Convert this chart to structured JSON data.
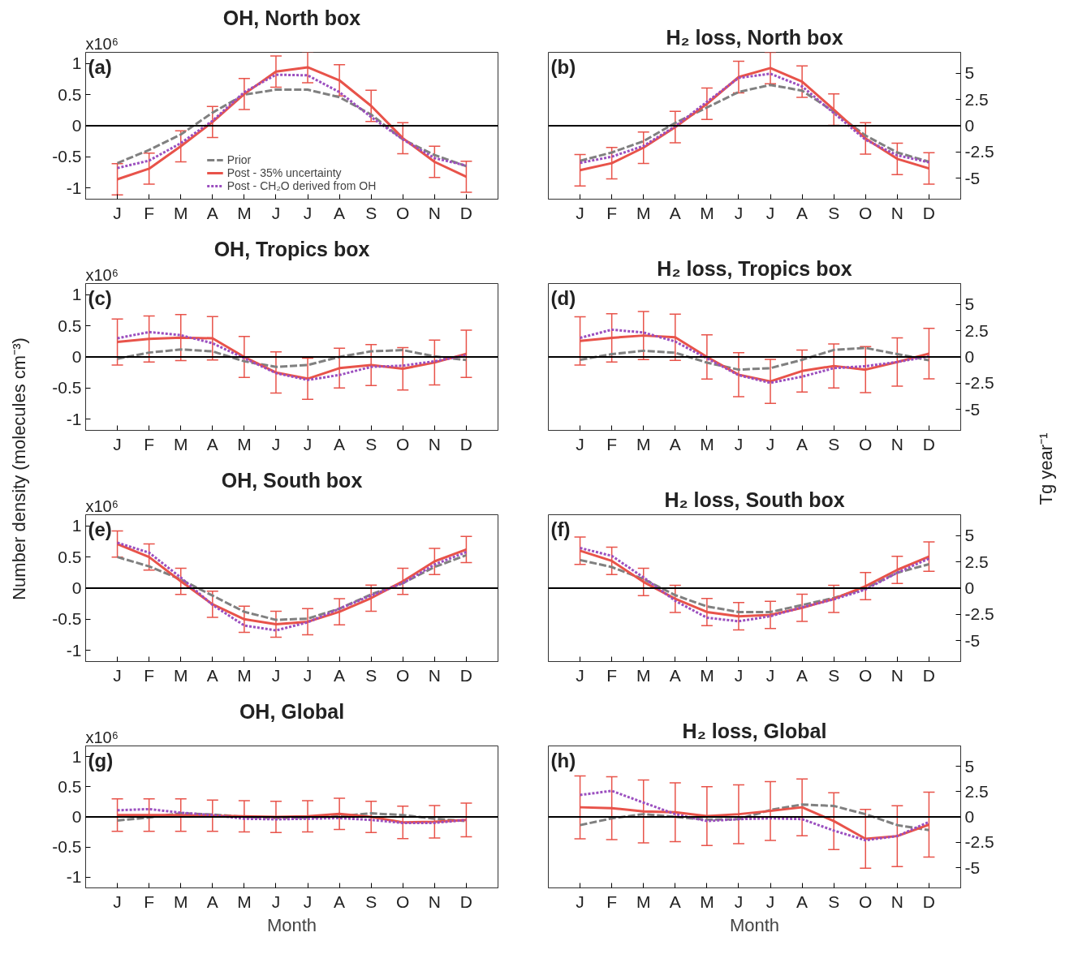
{
  "chart_data": [
    {
      "type": "line",
      "title": "OH, North box",
      "categories": [
        "J",
        "F",
        "M",
        "A",
        "M",
        "J",
        "J",
        "A",
        "S",
        "O",
        "N",
        "D"
      ],
      "ylim": [
        -1.18,
        1.18
      ],
      "yticks": [
        -1,
        -0.5,
        0,
        0.5,
        1
      ],
      "annotations": [
        "(a)",
        "x10⁶"
      ],
      "legend": "bottom",
      "ref_lines": [
        {
          "axis": "y",
          "value": 0,
          "color": "#000000"
        }
      ],
      "series": [
        {
          "name": "Prior",
          "color": "#808080",
          "line_style": "dashed",
          "values": [
            -0.6,
            -0.39,
            -0.14,
            0.21,
            0.5,
            0.58,
            0.58,
            0.46,
            0.18,
            -0.22,
            -0.47,
            -0.65
          ]
        },
        {
          "name": "Post - 35% uncertainty",
          "color": "#e8534a",
          "line_style": "solid",
          "values": [
            -0.86,
            -0.69,
            -0.33,
            0.06,
            0.51,
            0.87,
            0.94,
            0.73,
            0.32,
            -0.2,
            -0.58,
            -0.82
          ],
          "errors": [
            0.25,
            0.25,
            0.25,
            0.25,
            0.25,
            0.25,
            0.25,
            0.25,
            0.25,
            0.25,
            0.25,
            0.25
          ]
        },
        {
          "name": "Post - CH₂O derived from OH",
          "color": "#9b4fbf",
          "line_style": "dotted",
          "values": [
            -0.68,
            -0.56,
            -0.28,
            0.08,
            0.54,
            0.82,
            0.81,
            0.54,
            0.14,
            -0.22,
            -0.52,
            -0.64
          ]
        }
      ]
    },
    {
      "type": "line",
      "title": "H₂ loss, North box",
      "categories": [
        "J",
        "F",
        "M",
        "A",
        "M",
        "J",
        "J",
        "A",
        "S",
        "O",
        "N",
        "D"
      ],
      "y2lim": [
        -7,
        7
      ],
      "y2ticks": [
        -5,
        -2.5,
        0,
        2.5,
        5
      ],
      "annotations": [
        "(b)"
      ],
      "ref_lines": [
        {
          "axis": "y2",
          "value": 0,
          "color": "#000000"
        }
      ],
      "series": [
        {
          "color": "#808080",
          "line_style": "dashed",
          "axis": "y2",
          "values": [
            -3.35,
            -2.55,
            -1.47,
            0.27,
            1.74,
            3.22,
            3.89,
            3.35,
            1.34,
            -0.94,
            -2.55,
            -3.43
          ]
        },
        {
          "color": "#e8534a",
          "line_style": "solid",
          "axis": "y2",
          "values": [
            -4.24,
            -3.57,
            -2.09,
            -0.13,
            2.09,
            4.64,
            5.5,
            4.21,
            1.53,
            -1.21,
            -3.16,
            -4.07
          ],
          "errors": [
            1.5,
            1.5,
            1.5,
            1.5,
            1.5,
            1.5,
            1.5,
            1.5,
            1.5,
            1.5,
            1.5,
            1.5
          ]
        },
        {
          "color": "#9b4fbf",
          "line_style": "dotted",
          "axis": "y2",
          "values": [
            -3.54,
            -2.95,
            -1.93,
            -0.05,
            2.28,
            4.56,
            4.96,
            3.75,
            1.21,
            -1.34,
            -2.82,
            -3.49
          ]
        }
      ]
    },
    {
      "type": "line",
      "title": "OH, Tropics box",
      "ylabel": "Number density (molecules cm⁻³)",
      "categories": [
        "J",
        "F",
        "M",
        "A",
        "M",
        "J",
        "J",
        "A",
        "S",
        "O",
        "N",
        "D"
      ],
      "ylim": [
        -1.18,
        1.18
      ],
      "yticks": [
        -1,
        -0.5,
        0,
        0.5,
        1
      ],
      "annotations": [
        "(c)",
        "x10⁶"
      ],
      "ref_lines": [
        {
          "axis": "y",
          "value": 0,
          "color": "#000000"
        }
      ],
      "series": [
        {
          "color": "#808080",
          "line_style": "dashed",
          "values": [
            -0.03,
            0.07,
            0.12,
            0.09,
            -0.07,
            -0.16,
            -0.13,
            0,
            0.09,
            0.11,
            0.01,
            -0.05
          ]
        },
        {
          "color": "#e8534a",
          "line_style": "solid",
          "values": [
            0.24,
            0.29,
            0.31,
            0.3,
            0,
            -0.25,
            -0.35,
            -0.18,
            -0.13,
            -0.19,
            -0.09,
            0.05
          ],
          "errors": [
            0.37,
            0.37,
            0.37,
            0.35,
            0.33,
            0.33,
            0.33,
            0.32,
            0.33,
            0.34,
            0.36,
            0.38
          ]
        },
        {
          "color": "#9b4fbf",
          "line_style": "dotted",
          "values": [
            0.3,
            0.4,
            0.35,
            0.22,
            -0.02,
            -0.26,
            -0.37,
            -0.29,
            -0.16,
            -0.14,
            -0.07,
            0.03
          ]
        }
      ]
    },
    {
      "type": "line",
      "title": "H₂ loss, Tropics box",
      "y2label": "Tg year⁻¹",
      "categories": [
        "J",
        "F",
        "M",
        "A",
        "M",
        "J",
        "J",
        "A",
        "S",
        "O",
        "N",
        "D"
      ],
      "y2lim": [
        -7,
        7
      ],
      "y2ticks": [
        -5,
        -2.5,
        0,
        2.5,
        5
      ],
      "annotations": [
        "(d)"
      ],
      "ref_lines": [
        {
          "axis": "y2",
          "value": 0,
          "color": "#000000"
        }
      ],
      "series": [
        {
          "color": "#808080",
          "line_style": "dashed",
          "axis": "y2",
          "values": [
            -0.27,
            0.27,
            0.59,
            0.4,
            -0.54,
            -1.21,
            -1.07,
            -0.27,
            0.67,
            0.86,
            0.27,
            -0.32
          ]
        },
        {
          "color": "#e8534a",
          "line_style": "solid",
          "axis": "y2",
          "values": [
            1.53,
            1.82,
            2.04,
            1.88,
            0,
            -1.69,
            -2.33,
            -1.34,
            -0.86,
            -1.21,
            -0.48,
            0.32
          ],
          "errors": [
            2.3,
            2.3,
            2.3,
            2.2,
            2.1,
            2.1,
            2.1,
            2.0,
            2.1,
            2.2,
            2.3,
            2.4
          ]
        },
        {
          "color": "#9b4fbf",
          "line_style": "dotted",
          "axis": "y2",
          "values": [
            1.82,
            2.6,
            2.33,
            1.47,
            -0.13,
            -1.74,
            -2.47,
            -1.88,
            -1.07,
            -0.88,
            -0.48,
            0.05
          ]
        }
      ]
    },
    {
      "type": "line",
      "title": "OH, South box",
      "categories": [
        "J",
        "F",
        "M",
        "A",
        "M",
        "J",
        "J",
        "A",
        "S",
        "O",
        "N",
        "D"
      ],
      "ylim": [
        -1.18,
        1.18
      ],
      "yticks": [
        -1,
        -0.5,
        0,
        0.5,
        1
      ],
      "annotations": [
        "(e)",
        "x10⁶"
      ],
      "ref_lines": [
        {
          "axis": "y",
          "value": 0,
          "color": "#000000"
        }
      ],
      "series": [
        {
          "color": "#808080",
          "line_style": "dashed",
          "values": [
            0.5,
            0.35,
            0.14,
            -0.12,
            -0.38,
            -0.51,
            -0.49,
            -0.33,
            -0.1,
            0.08,
            0.34,
            0.53
          ]
        },
        {
          "color": "#e8534a",
          "line_style": "solid",
          "values": [
            0.71,
            0.5,
            0.11,
            -0.26,
            -0.5,
            -0.58,
            -0.54,
            -0.38,
            -0.16,
            0.11,
            0.43,
            0.62
          ],
          "errors": [
            0.21,
            0.21,
            0.21,
            0.21,
            0.21,
            0.21,
            0.21,
            0.21,
            0.21,
            0.21,
            0.21,
            0.21
          ]
        },
        {
          "color": "#9b4fbf",
          "line_style": "dotted",
          "values": [
            0.73,
            0.57,
            0.17,
            -0.27,
            -0.6,
            -0.68,
            -0.55,
            -0.33,
            -0.12,
            0.08,
            0.38,
            0.58
          ]
        }
      ]
    },
    {
      "type": "line",
      "title": "H₂ loss, South box",
      "categories": [
        "J",
        "F",
        "M",
        "A",
        "M",
        "J",
        "J",
        "A",
        "S",
        "O",
        "N",
        "D"
      ],
      "y2lim": [
        -7,
        7
      ],
      "y2ticks": [
        -5,
        -2.5,
        0,
        2.5,
        5
      ],
      "annotations": [
        "(f)"
      ],
      "ref_lines": [
        {
          "axis": "y2",
          "value": 0,
          "color": "#000000"
        }
      ],
      "series": [
        {
          "color": "#808080",
          "line_style": "dashed",
          "axis": "y2",
          "values": [
            2.68,
            2.01,
            0.86,
            -0.67,
            -1.74,
            -2.28,
            -2.28,
            -1.61,
            -0.94,
            0,
            1.47,
            2.28
          ]
        },
        {
          "color": "#e8534a",
          "line_style": "solid",
          "axis": "y2",
          "values": [
            3.57,
            2.6,
            0.59,
            -1.02,
            -2.28,
            -2.68,
            -2.55,
            -1.88,
            -1.02,
            0.19,
            1.74,
            3.0
          ],
          "errors": [
            1.3,
            1.3,
            1.3,
            1.3,
            1.3,
            1.3,
            1.3,
            1.3,
            1.3,
            1.3,
            1.3,
            1.4
          ]
        },
        {
          "color": "#9b4fbf",
          "line_style": "dotted",
          "axis": "y2",
          "values": [
            3.83,
            3.08,
            1.02,
            -1.21,
            -2.82,
            -3.16,
            -2.68,
            -1.82,
            -1.07,
            -0.13,
            1.47,
            2.82
          ]
        }
      ]
    },
    {
      "type": "line",
      "title": "OH, Global",
      "xlabel": "Month",
      "categories": [
        "J",
        "F",
        "M",
        "A",
        "M",
        "J",
        "J",
        "A",
        "S",
        "O",
        "N",
        "D"
      ],
      "ylim": [
        -1.18,
        1.18
      ],
      "yticks": [
        -1,
        -0.5,
        0,
        0.5,
        1
      ],
      "annotations": [
        "(g)",
        "x10⁶"
      ],
      "ref_lines": [
        {
          "axis": "y",
          "value": 0,
          "color": "#000000"
        }
      ],
      "series": [
        {
          "color": "#808080",
          "line_style": "dashed",
          "values": [
            -0.06,
            -0.01,
            0.06,
            0.04,
            0,
            -0.02,
            -0.01,
            0.01,
            0.06,
            0.03,
            -0.03,
            -0.07
          ]
        },
        {
          "color": "#e8534a",
          "line_style": "solid",
          "values": [
            0.03,
            0.03,
            0.03,
            0.02,
            0.01,
            0,
            0.01,
            0.05,
            0,
            -0.09,
            -0.08,
            -0.05
          ],
          "errors": [
            0.27,
            0.27,
            0.27,
            0.26,
            0.26,
            0.26,
            0.26,
            0.26,
            0.26,
            0.27,
            0.27,
            0.28
          ]
        },
        {
          "color": "#9b4fbf",
          "line_style": "dotted",
          "values": [
            0.11,
            0.13,
            0.07,
            0.03,
            -0.03,
            -0.04,
            -0.03,
            -0.02,
            -0.05,
            -0.1,
            -0.1,
            -0.05
          ]
        }
      ]
    },
    {
      "type": "line",
      "title": "H₂ loss, Global",
      "xlabel": "Month",
      "categories": [
        "J",
        "F",
        "M",
        "A",
        "M",
        "J",
        "J",
        "A",
        "S",
        "O",
        "N",
        "D"
      ],
      "y2lim": [
        -7,
        7
      ],
      "y2ticks": [
        -5,
        -2.5,
        0,
        2.5,
        5
      ],
      "annotations": [
        "(h)"
      ],
      "ref_lines": [
        {
          "axis": "y2",
          "value": 0,
          "color": "#000000"
        }
      ],
      "series": [
        {
          "color": "#808080",
          "line_style": "dashed",
          "axis": "y2",
          "values": [
            -0.81,
            -0.14,
            0.27,
            0,
            -0.27,
            -0.22,
            0.68,
            1.22,
            1.08,
            0.27,
            -0.81,
            -1.3
          ]
        },
        {
          "color": "#e8534a",
          "line_style": "solid",
          "axis": "y2",
          "values": [
            0.95,
            0.86,
            0.54,
            0.46,
            0.08,
            0.27,
            0.59,
            0.95,
            -0.41,
            -2.16,
            -1.89,
            -0.76
          ],
          "errors": [
            3.1,
            3.1,
            3.1,
            2.9,
            2.9,
            2.9,
            2.9,
            2.8,
            2.8,
            2.9,
            3.0,
            3.2
          ]
        },
        {
          "color": "#9b4fbf",
          "line_style": "dotted",
          "axis": "y2",
          "values": [
            2.16,
            2.57,
            1.41,
            0.27,
            -0.41,
            -0.22,
            -0.14,
            -0.22,
            -1.35,
            -2.3,
            -1.89,
            -0.49
          ]
        }
      ]
    }
  ]
}
